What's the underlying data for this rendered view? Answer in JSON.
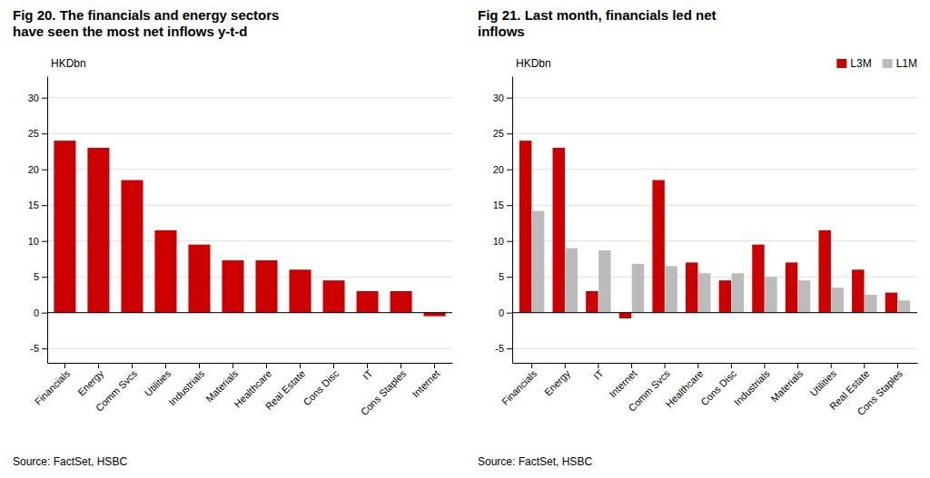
{
  "chart_data": [
    {
      "type": "bar",
      "title": "Fig 20. The financials and energy sectors\nhave seen the most net inflows y-t-d",
      "y_label": "HKDbn",
      "source": "Source: FactSet, HSBC",
      "categories": [
        "Financials",
        "Energy",
        "Comm Svcs",
        "Utilities",
        "Industrials",
        "Materials",
        "Healthcare",
        "Real Estate",
        "Cons Disc",
        "IT",
        "Cons Staples",
        "Internet"
      ],
      "values": [
        24.0,
        23.0,
        18.5,
        11.5,
        9.5,
        7.3,
        7.3,
        6.0,
        4.5,
        3.0,
        3.0,
        -0.5
      ],
      "color": "#cc0000",
      "ylim": [
        -7,
        33
      ],
      "yticks": [
        -5,
        0,
        5,
        10,
        15,
        20,
        25,
        30
      ],
      "grid": true
    },
    {
      "type": "bar",
      "title": "Fig 21. Last month, financials led net\ninflows",
      "y_label": "HKDbn",
      "source": "Source: FactSet, HSBC",
      "categories": [
        "Financials",
        "Energy",
        "IT",
        "Internet",
        "Comm Svcs",
        "Healthcare",
        "Cons Disc",
        "Industrials",
        "Materials",
        "Utilities",
        "Real Estate",
        "Cons Staples"
      ],
      "series": [
        {
          "name": "L3M",
          "color": "#cc0000",
          "values": [
            24.0,
            23.0,
            3.0,
            -0.8,
            18.5,
            7.0,
            4.5,
            9.5,
            7.0,
            11.5,
            6.0,
            2.8
          ]
        },
        {
          "name": "L1M",
          "color": "#bbbbbb",
          "values": [
            14.2,
            9.0,
            8.7,
            6.8,
            6.5,
            5.5,
            5.5,
            5.0,
            4.5,
            3.5,
            2.5,
            1.7
          ]
        }
      ],
      "ylim": [
        -7,
        33
      ],
      "yticks": [
        -5,
        0,
        5,
        10,
        15,
        20,
        25,
        30
      ],
      "grid": true,
      "legend": "top-right"
    }
  ]
}
